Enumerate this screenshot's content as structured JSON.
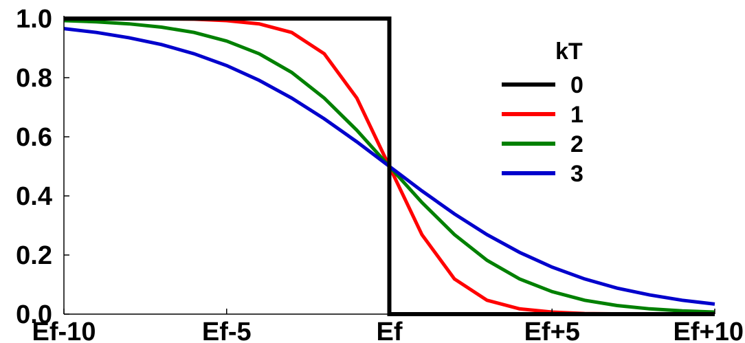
{
  "chart_data": {
    "type": "line",
    "title": "",
    "xlabel": "",
    "ylabel": "",
    "xlim": [
      -10,
      10
    ],
    "ylim": [
      0,
      1
    ],
    "grid": false,
    "legend_placement": "top-right",
    "legend_title": "kT",
    "x_ticks": [
      {
        "value": -10,
        "label": "Ef-10"
      },
      {
        "value": -5,
        "label": "Ef-5"
      },
      {
        "value": 0,
        "label": "Ef"
      },
      {
        "value": 5,
        "label": "Ef+5"
      },
      {
        "value": 10,
        "label": "Ef+10"
      }
    ],
    "y_ticks": [
      {
        "value": 0.0,
        "label": "0.0"
      },
      {
        "value": 0.2,
        "label": "0.2"
      },
      {
        "value": 0.4,
        "label": "0.4"
      },
      {
        "value": 0.6,
        "label": "0.6"
      },
      {
        "value": 0.8,
        "label": "0.8"
      },
      {
        "value": 1.0,
        "label": "1.0"
      }
    ],
    "series": [
      {
        "name": "0",
        "color": "#000000",
        "x": [
          -10,
          0,
          0,
          10
        ],
        "y": [
          1.0,
          1.0,
          0.0,
          0.0
        ]
      },
      {
        "name": "1",
        "color": "#ff0000",
        "x": [
          -10,
          -9,
          -8,
          -7,
          -6,
          -5,
          -4,
          -3,
          -2,
          -1,
          0,
          1,
          2,
          3,
          4,
          5,
          6,
          7,
          8,
          9,
          10
        ],
        "y": [
          1.0,
          1.0,
          1.0,
          0.999,
          0.998,
          0.993,
          0.982,
          0.953,
          0.881,
          0.731,
          0.5,
          0.269,
          0.119,
          0.047,
          0.018,
          0.007,
          0.002,
          0.001,
          0.0,
          0.0,
          0.0
        ]
      },
      {
        "name": "2",
        "color": "#008000",
        "x": [
          -10,
          -9,
          -8,
          -7,
          -6,
          -5,
          -4,
          -3,
          -2,
          -1,
          0,
          1,
          2,
          3,
          4,
          5,
          6,
          7,
          8,
          9,
          10
        ],
        "y": [
          0.993,
          0.989,
          0.982,
          0.971,
          0.953,
          0.924,
          0.881,
          0.818,
          0.731,
          0.622,
          0.5,
          0.378,
          0.269,
          0.182,
          0.119,
          0.076,
          0.047,
          0.029,
          0.018,
          0.011,
          0.007
        ]
      },
      {
        "name": "3",
        "color": "#0000cc",
        "x": [
          -10,
          -9,
          -8,
          -7,
          -6,
          -5,
          -4,
          -3,
          -2,
          -1,
          0,
          1,
          2,
          3,
          4,
          5,
          6,
          7,
          8,
          9,
          10
        ],
        "y": [
          0.966,
          0.953,
          0.935,
          0.912,
          0.881,
          0.841,
          0.791,
          0.731,
          0.661,
          0.583,
          0.5,
          0.417,
          0.339,
          0.269,
          0.209,
          0.159,
          0.119,
          0.088,
          0.065,
          0.047,
          0.034
        ]
      }
    ]
  }
}
